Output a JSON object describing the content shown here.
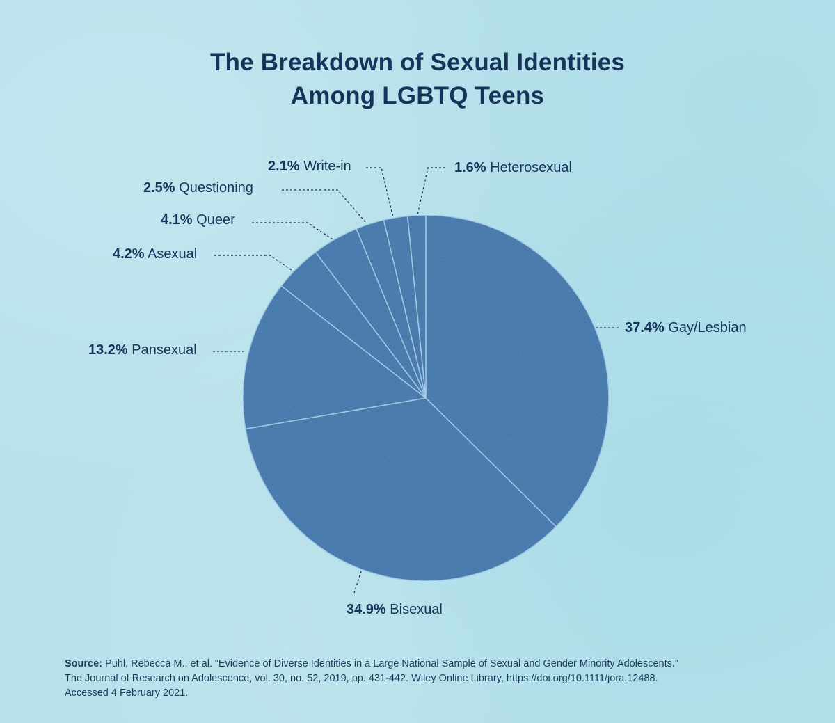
{
  "title": {
    "line1": "The Breakdown of Sexual Identities",
    "line2": "Among LGBTQ Teens"
  },
  "colors": {
    "background": "#b6e1eb",
    "slice": "#2a6fa8",
    "slice_divider": "#9cc6e2",
    "text": "#16345a"
  },
  "labels": [
    {
      "pct": "37.4%",
      "name": "Gay/Lesbian"
    },
    {
      "pct": "34.9%",
      "name": "Bisexual"
    },
    {
      "pct": "13.2%",
      "name": "Pansexual"
    },
    {
      "pct": "4.2%",
      "name": "Asexual"
    },
    {
      "pct": "4.1%",
      "name": "Queer"
    },
    {
      "pct": "2.5%",
      "name": "Questioning"
    },
    {
      "pct": "2.1%",
      "name": "Write-in"
    },
    {
      "pct": "1.6%",
      "name": "Heterosexual"
    }
  ],
  "source": {
    "label": "Source:",
    "line1": "Puhl, Rebecca M., et al. “Evidence of Diverse Identities in a Large National Sample of Sexual and Gender Minority Adolescents.”",
    "line2": "The Journal of Research on Adolescence, vol. 30, no. 52, 2019, pp. 431-442. Wiley Online Library, https://doi.org/10.1111/jora.12488.",
    "line3": "Accessed 4 February 2021."
  },
  "chart_data": {
    "type": "pie",
    "title": "The Breakdown of Sexual Identities Among LGBTQ Teens",
    "categories": [
      "Gay/Lesbian",
      "Bisexual",
      "Pansexual",
      "Asexual",
      "Queer",
      "Questioning",
      "Write-in",
      "Heterosexual"
    ],
    "values": [
      37.4,
      34.9,
      13.2,
      4.2,
      4.1,
      2.5,
      2.1,
      1.6
    ],
    "unit": "%",
    "start_angle": "12 o'clock",
    "direction": "clockwise",
    "legend": "none (direct labels with dotted leader lines)"
  }
}
